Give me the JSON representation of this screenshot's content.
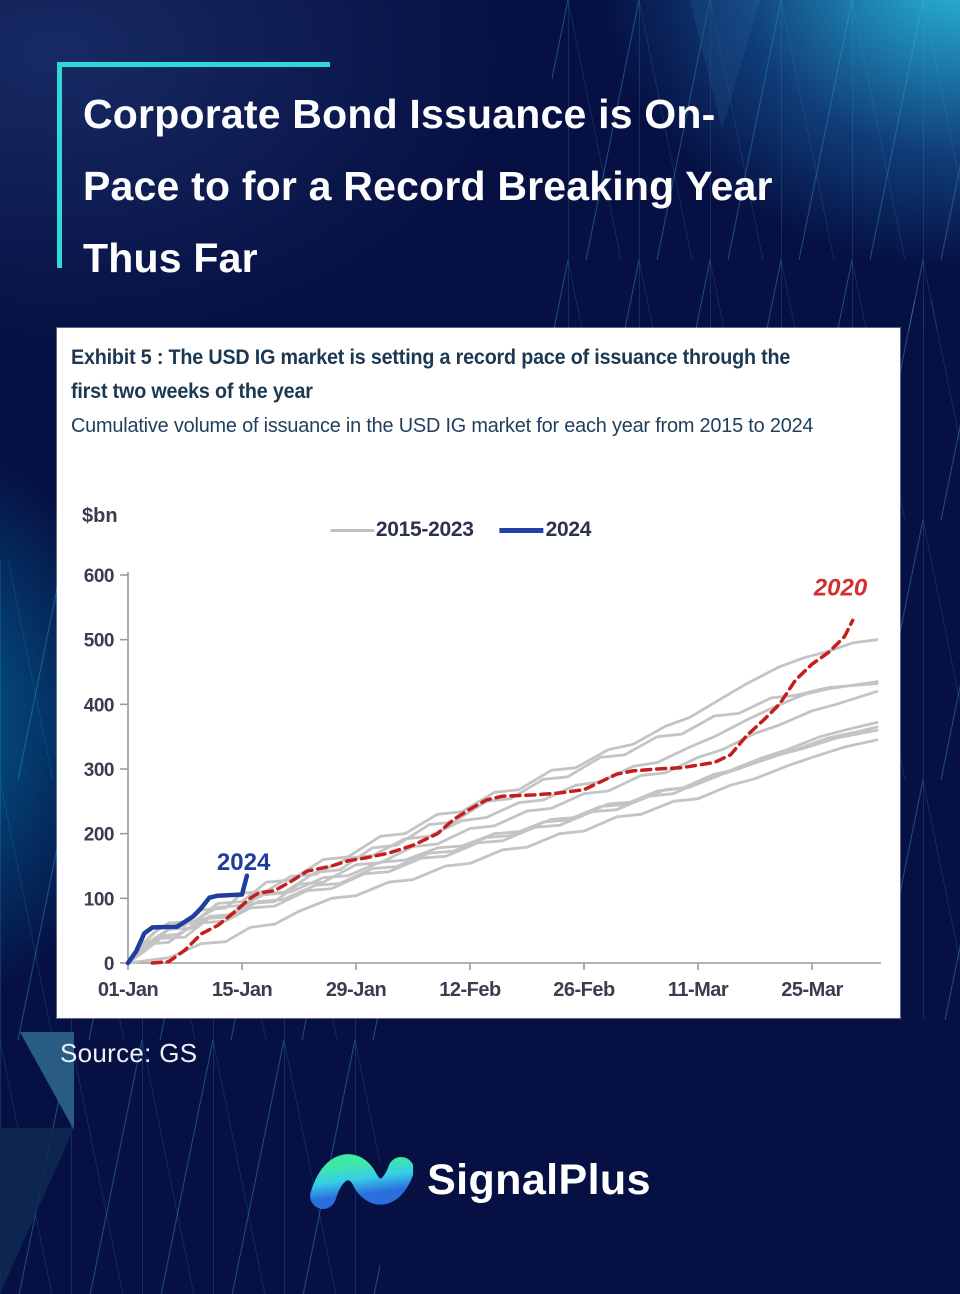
{
  "page": {
    "title_lines": [
      "Corporate Bond Issuance is On-",
      "Pace to for a Record Breaking Year",
      "Thus Far"
    ],
    "source": "Source: GS",
    "brand": "SignalPlus"
  },
  "card": {
    "exhibit_title_lines": [
      "Exhibit 5 : The USD IG market is setting a record pace of issuance through the",
      "first two weeks of the year"
    ],
    "subtitle": "Cumulative volume of issuance in the USD IG market for each year from 2015 to 2024"
  },
  "colors": {
    "background": "#061043",
    "accent_teal": "#2ed9d6",
    "card_bg": "#ffffff",
    "gray_line": "#c4c4c4",
    "blue_line": "#1f3f9f",
    "red_line": "#c41e1e",
    "axis": "#9a9a9a",
    "tick_text": "#3c3c50",
    "logo_gradient": [
      "#3fe9a5",
      "#38cde9",
      "#2a6fdd"
    ]
  },
  "chart_data": {
    "type": "line",
    "title": "Exhibit 5 : The USD IG market is setting a record pace of issuance through the first two weeks of the year",
    "subtitle": "Cumulative volume of issuance in the USD IG market for each year from 2015 to 2024",
    "unit_label": "$bn",
    "ylim": [
      0,
      600
    ],
    "y_ticks": [
      0,
      100,
      200,
      300,
      400,
      500,
      600
    ],
    "x_ticks": [
      {
        "day": 0,
        "label": "01-Jan"
      },
      {
        "day": 14,
        "label": "15-Jan"
      },
      {
        "day": 28,
        "label": "29-Jan"
      },
      {
        "day": 42,
        "label": "12-Feb"
      },
      {
        "day": 56,
        "label": "26-Feb"
      },
      {
        "day": 70,
        "label": "11-Mar"
      },
      {
        "day": 84,
        "label": "25-Mar"
      }
    ],
    "legend": [
      {
        "label": "2015-2023",
        "color": "#c0c0c0",
        "width": 3
      },
      {
        "label": "2024",
        "color": "#2242a8",
        "width": 5
      }
    ],
    "annotations": [
      {
        "text": "2024",
        "day": 14.2,
        "value": 144,
        "color": "#1d3c9c",
        "italic": false
      },
      {
        "text": "2020",
        "day": 87.5,
        "value": 568,
        "color": "#d03030",
        "italic": true
      }
    ],
    "series": [
      {
        "name": "2015",
        "color": "#c4c4c4",
        "width": 2.8,
        "points": [
          [
            0,
            0
          ],
          [
            3,
            30
          ],
          [
            5,
            32
          ],
          [
            9,
            68
          ],
          [
            12,
            71
          ],
          [
            16,
            105
          ],
          [
            19,
            108
          ],
          [
            23,
            140
          ],
          [
            26,
            144
          ],
          [
            30,
            178
          ],
          [
            33,
            182
          ],
          [
            37,
            214
          ],
          [
            40,
            218
          ],
          [
            44,
            250
          ],
          [
            47,
            254
          ],
          [
            51,
            284
          ],
          [
            54,
            288
          ],
          [
            58,
            318
          ],
          [
            61,
            322
          ],
          [
            65,
            350
          ],
          [
            68,
            354
          ],
          [
            72,
            382
          ],
          [
            75,
            386
          ],
          [
            79,
            410
          ],
          [
            82,
            414
          ],
          [
            86,
            426
          ],
          [
            92,
            432
          ]
        ]
      },
      {
        "name": "2016",
        "color": "#c4c4c4",
        "width": 2.8,
        "points": [
          [
            0,
            0
          ],
          [
            2,
            18
          ],
          [
            4,
            38
          ],
          [
            7,
            40
          ],
          [
            10,
            70
          ],
          [
            13,
            73
          ],
          [
            15,
            92
          ],
          [
            18,
            95
          ],
          [
            21,
            122
          ],
          [
            24,
            125
          ],
          [
            28,
            152
          ],
          [
            31,
            155
          ],
          [
            35,
            180
          ],
          [
            38,
            184
          ],
          [
            42,
            208
          ],
          [
            45,
            212
          ],
          [
            49,
            235
          ],
          [
            52,
            239
          ],
          [
            56,
            262
          ],
          [
            59,
            266
          ],
          [
            63,
            290
          ],
          [
            66,
            294
          ],
          [
            70,
            318
          ],
          [
            73,
            330
          ],
          [
            77,
            355
          ],
          [
            80,
            368
          ],
          [
            84,
            390
          ],
          [
            87,
            400
          ],
          [
            92,
            420
          ]
        ]
      },
      {
        "name": "2017",
        "color": "#c4c4c4",
        "width": 2.8,
        "points": [
          [
            0,
            0
          ],
          [
            3,
            35
          ],
          [
            6,
            60
          ],
          [
            8,
            62
          ],
          [
            11,
            92
          ],
          [
            14,
            95
          ],
          [
            17,
            125
          ],
          [
            20,
            128
          ],
          [
            24,
            160
          ],
          [
            27,
            164
          ],
          [
            31,
            196
          ],
          [
            34,
            200
          ],
          [
            38,
            230
          ],
          [
            41,
            234
          ],
          [
            45,
            264
          ],
          [
            48,
            268
          ],
          [
            52,
            298
          ],
          [
            55,
            302
          ],
          [
            59,
            330
          ],
          [
            62,
            338
          ],
          [
            66,
            366
          ],
          [
            69,
            380
          ],
          [
            73,
            410
          ],
          [
            76,
            432
          ],
          [
            80,
            458
          ],
          [
            83,
            472
          ],
          [
            86,
            482
          ],
          [
            89,
            495
          ],
          [
            92,
            500
          ]
        ]
      },
      {
        "name": "2018",
        "color": "#c4c4c4",
        "width": 2.8,
        "points": [
          [
            0,
            0
          ],
          [
            4,
            42
          ],
          [
            6,
            44
          ],
          [
            9,
            62
          ],
          [
            12,
            65
          ],
          [
            15,
            85
          ],
          [
            18,
            88
          ],
          [
            22,
            112
          ],
          [
            25,
            115
          ],
          [
            29,
            138
          ],
          [
            32,
            141
          ],
          [
            36,
            162
          ],
          [
            39,
            165
          ],
          [
            43,
            186
          ],
          [
            46,
            189
          ],
          [
            50,
            210
          ],
          [
            53,
            213
          ],
          [
            57,
            234
          ],
          [
            60,
            237
          ],
          [
            64,
            258
          ],
          [
            67,
            262
          ],
          [
            71,
            284
          ],
          [
            74,
            298
          ],
          [
            78,
            318
          ],
          [
            81,
            330
          ],
          [
            85,
            350
          ],
          [
            88,
            360
          ],
          [
            92,
            372
          ]
        ]
      },
      {
        "name": "2019",
        "color": "#c4c4c4",
        "width": 2.8,
        "points": [
          [
            0,
            0
          ],
          [
            2,
            28
          ],
          [
            5,
            52
          ],
          [
            8,
            54
          ],
          [
            10,
            72
          ],
          [
            13,
            75
          ],
          [
            16,
            95
          ],
          [
            19,
            98
          ],
          [
            23,
            120
          ],
          [
            26,
            123
          ],
          [
            30,
            146
          ],
          [
            33,
            149
          ],
          [
            37,
            170
          ],
          [
            40,
            173
          ],
          [
            44,
            194
          ],
          [
            47,
            197
          ],
          [
            51,
            218
          ],
          [
            54,
            221
          ],
          [
            58,
            242
          ],
          [
            61,
            245
          ],
          [
            65,
            266
          ],
          [
            68,
            270
          ],
          [
            72,
            292
          ],
          [
            75,
            300
          ],
          [
            79,
            320
          ],
          [
            82,
            330
          ],
          [
            86,
            348
          ],
          [
            89,
            356
          ],
          [
            92,
            365
          ]
        ]
      },
      {
        "name": "2021",
        "color": "#c4c4c4",
        "width": 2.8,
        "points": [
          [
            0,
            0
          ],
          [
            3,
            45
          ],
          [
            5,
            62
          ],
          [
            8,
            64
          ],
          [
            11,
            86
          ],
          [
            14,
            89
          ],
          [
            17,
            108
          ],
          [
            20,
            110
          ],
          [
            24,
            132
          ],
          [
            27,
            135
          ],
          [
            31,
            156
          ],
          [
            34,
            159
          ],
          [
            38,
            178
          ],
          [
            41,
            181
          ],
          [
            45,
            200
          ],
          [
            48,
            203
          ],
          [
            52,
            222
          ],
          [
            55,
            225
          ],
          [
            59,
            246
          ],
          [
            62,
            249
          ],
          [
            66,
            268
          ],
          [
            69,
            272
          ],
          [
            73,
            292
          ],
          [
            76,
            305
          ],
          [
            80,
            322
          ],
          [
            83,
            332
          ],
          [
            87,
            348
          ],
          [
            92,
            360
          ]
        ]
      },
      {
        "name": "2022",
        "color": "#c4c4c4",
        "width": 2.8,
        "points": [
          [
            0,
            0
          ],
          [
            5,
            8
          ],
          [
            9,
            30
          ],
          [
            12,
            33
          ],
          [
            15,
            55
          ],
          [
            18,
            60
          ],
          [
            21,
            80
          ],
          [
            25,
            100
          ],
          [
            28,
            104
          ],
          [
            32,
            125
          ],
          [
            35,
            129
          ],
          [
            39,
            150
          ],
          [
            42,
            154
          ],
          [
            46,
            175
          ],
          [
            49,
            179
          ],
          [
            53,
            200
          ],
          [
            56,
            204
          ],
          [
            60,
            226
          ],
          [
            63,
            230
          ],
          [
            67,
            250
          ],
          [
            70,
            254
          ],
          [
            74,
            275
          ],
          [
            77,
            285
          ],
          [
            81,
            305
          ],
          [
            84,
            318
          ],
          [
            88,
            334
          ],
          [
            92,
            345
          ]
        ]
      },
      {
        "name": "2023",
        "color": "#c4c4c4",
        "width": 2.8,
        "points": [
          [
            0,
            0
          ],
          [
            2,
            32
          ],
          [
            4,
            56
          ],
          [
            7,
            58
          ],
          [
            9,
            82
          ],
          [
            12,
            85
          ],
          [
            14,
            108
          ],
          [
            17,
            111
          ],
          [
            20,
            134
          ],
          [
            23,
            137
          ],
          [
            27,
            162
          ],
          [
            30,
            166
          ],
          [
            34,
            192
          ],
          [
            37,
            196
          ],
          [
            41,
            220
          ],
          [
            44,
            225
          ],
          [
            48,
            248
          ],
          [
            51,
            252
          ],
          [
            55,
            275
          ],
          [
            58,
            280
          ],
          [
            62,
            304
          ],
          [
            65,
            310
          ],
          [
            69,
            334
          ],
          [
            72,
            350
          ],
          [
            76,
            376
          ],
          [
            79,
            394
          ],
          [
            83,
            415
          ],
          [
            86,
            424
          ],
          [
            92,
            435
          ]
        ]
      },
      {
        "name": "2020",
        "color": "#c41e1e",
        "width": 3.5,
        "dash": "9 6",
        "points": [
          [
            3,
            0
          ],
          [
            5,
            2
          ],
          [
            7,
            20
          ],
          [
            9,
            45
          ],
          [
            11,
            58
          ],
          [
            13,
            78
          ],
          [
            15,
            100
          ],
          [
            16,
            108
          ],
          [
            18,
            112
          ],
          [
            20,
            126
          ],
          [
            22,
            142
          ],
          [
            25,
            150
          ],
          [
            27,
            158
          ],
          [
            29,
            162
          ],
          [
            32,
            170
          ],
          [
            35,
            182
          ],
          [
            38,
            200
          ],
          [
            40,
            222
          ],
          [
            42,
            238
          ],
          [
            44,
            252
          ],
          [
            46,
            258
          ],
          [
            50,
            260
          ],
          [
            53,
            263
          ],
          [
            56,
            268
          ],
          [
            58,
            280
          ],
          [
            60,
            292
          ],
          [
            62,
            297
          ],
          [
            65,
            300
          ],
          [
            68,
            302
          ],
          [
            70,
            306
          ],
          [
            72,
            310
          ],
          [
            74,
            322
          ],
          [
            76,
            352
          ],
          [
            78,
            375
          ],
          [
            80,
            400
          ],
          [
            82,
            438
          ],
          [
            84,
            462
          ],
          [
            86,
            480
          ],
          [
            87,
            492
          ],
          [
            88,
            505
          ],
          [
            89,
            530
          ]
        ]
      },
      {
        "name": "2024",
        "color": "#1f3f9f",
        "width": 4.5,
        "points": [
          [
            0,
            0
          ],
          [
            1,
            18
          ],
          [
            2,
            46
          ],
          [
            3,
            55
          ],
          [
            6,
            56
          ],
          [
            7,
            64
          ],
          [
            8,
            72
          ],
          [
            9,
            85
          ],
          [
            10,
            101
          ],
          [
            11,
            104
          ],
          [
            14,
            106
          ],
          [
            14.6,
            135
          ]
        ]
      }
    ]
  }
}
